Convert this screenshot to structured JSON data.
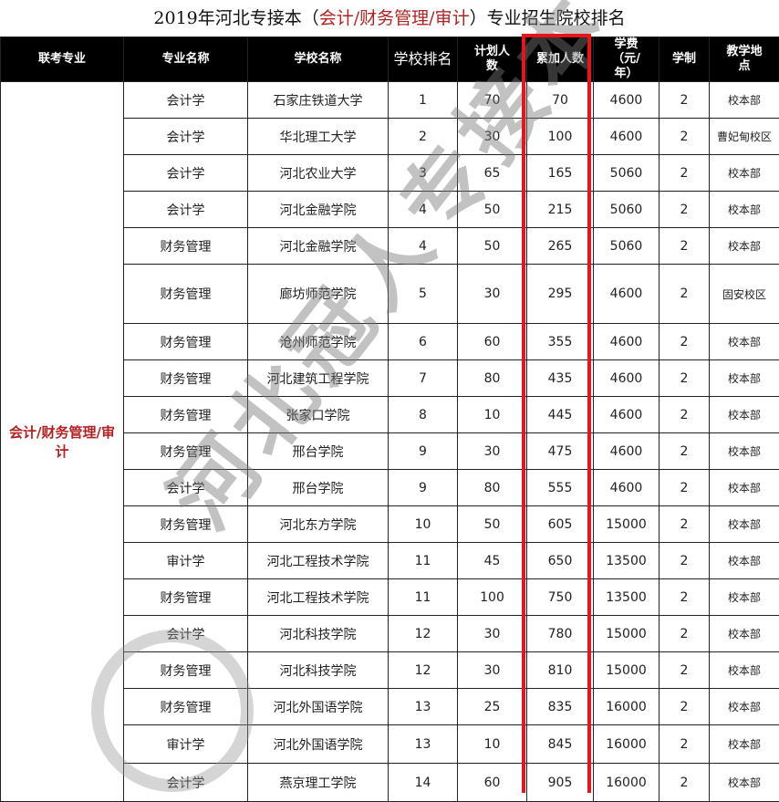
{
  "title": {
    "prefix": "2019年河北专接本（",
    "highlight": "会计/财务管理/审计",
    "suffix": "）专业招生院校排名"
  },
  "headers": [
    "联考专业",
    "专业名称",
    "学校名称",
    "学校排名",
    "计划人数",
    "累加人数",
    "学费（元/年）",
    "学制",
    "教学地点"
  ],
  "group_label": "会计/财务管理/审计",
  "watermark": "河北冠人专接本",
  "accent_color": "#e8141c",
  "rows": [
    [
      "会计学",
      "石家庄铁道大学",
      "1",
      "70",
      "70",
      "4600",
      "2",
      "校本部"
    ],
    [
      "会计学",
      "华北理工大学",
      "2",
      "30",
      "100",
      "4600",
      "2",
      "曹妃甸校区"
    ],
    [
      "会计学",
      "河北农业大学",
      "3",
      "65",
      "165",
      "5060",
      "2",
      "校本部"
    ],
    [
      "会计学",
      "河北金融学院",
      "4",
      "50",
      "215",
      "5060",
      "2",
      "校本部"
    ],
    [
      "财务管理",
      "河北金融学院",
      "4",
      "50",
      "265",
      "5060",
      "2",
      "校本部"
    ],
    [
      "财务管理",
      "廊坊师范学院",
      "5",
      "30",
      "295",
      "4600",
      "2",
      "固安校区"
    ],
    [
      "财务管理",
      "沧州师范学院",
      "6",
      "60",
      "355",
      "4600",
      "2",
      "校本部"
    ],
    [
      "财务管理",
      "河北建筑工程学院",
      "7",
      "80",
      "435",
      "4600",
      "2",
      "校本部"
    ],
    [
      "财务管理",
      "张家口学院",
      "8",
      "10",
      "445",
      "4600",
      "2",
      "校本部"
    ],
    [
      "财务管理",
      "邢台学院",
      "9",
      "30",
      "475",
      "4600",
      "2",
      "校本部"
    ],
    [
      "会计学",
      "邢台学院",
      "9",
      "80",
      "555",
      "4600",
      "2",
      "校本部"
    ],
    [
      "财务管理",
      "河北东方学院",
      "10",
      "50",
      "605",
      "15000",
      "2",
      "校本部"
    ],
    [
      "审计学",
      "河北工程技术学院",
      "11",
      "45",
      "650",
      "13500",
      "2",
      "校本部"
    ],
    [
      "财务管理",
      "河北工程技术学院",
      "11",
      "100",
      "750",
      "13500",
      "2",
      "校本部"
    ],
    [
      "会计学",
      "河北科技学院",
      "12",
      "30",
      "780",
      "15000",
      "2",
      "校本部"
    ],
    [
      "财务管理",
      "河北科技学院",
      "12",
      "30",
      "810",
      "15000",
      "2",
      "校本部"
    ],
    [
      "财务管理",
      "河北外国语学院",
      "13",
      "25",
      "835",
      "16000",
      "2",
      "校本部"
    ],
    [
      "审计学",
      "河北外国语学院",
      "13",
      "10",
      "845",
      "16000",
      "2",
      "校本部"
    ],
    [
      "会计学",
      "燕京理工学院",
      "14",
      "60",
      "905",
      "16000",
      "2",
      "校本部"
    ]
  ]
}
